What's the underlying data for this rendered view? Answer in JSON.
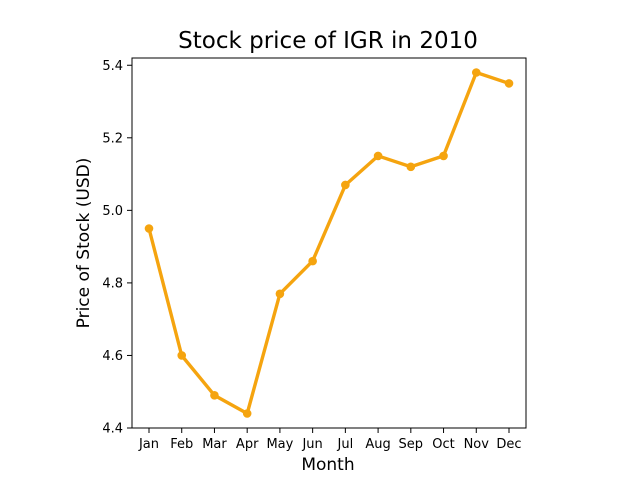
{
  "chart_data": {
    "type": "line",
    "title": "Stock price of IGR in 2010",
    "xlabel": "Month",
    "ylabel": "Price of Stock (USD)",
    "categories": [
      "Jan",
      "Feb",
      "Mar",
      "Apr",
      "May",
      "Jun",
      "Jul",
      "Aug",
      "Sep",
      "Oct",
      "Nov",
      "Dec"
    ],
    "series": [
      {
        "values": [
          4.95,
          4.6,
          4.49,
          4.44,
          4.77,
          4.86,
          5.07,
          5.15,
          5.12,
          5.15,
          5.38,
          5.35
        ],
        "color": "#f5a40f"
      }
    ],
    "yticks": [
      4.4,
      4.6,
      4.8,
      5.0,
      5.2,
      5.4
    ],
    "ytick_labels": [
      "4.4",
      "4.6",
      "4.8",
      "5.0",
      "5.2",
      "5.4"
    ],
    "ylim": [
      4.4,
      5.42
    ],
    "grid": false,
    "legend": "none"
  }
}
